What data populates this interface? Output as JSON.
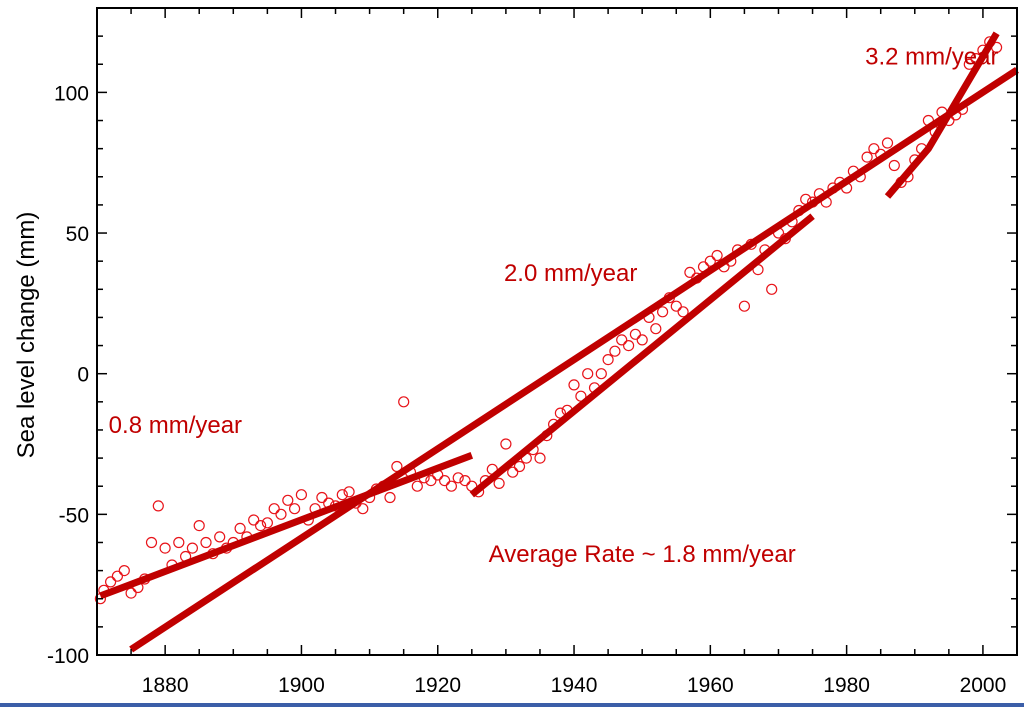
{
  "chart_data": {
    "type": "scatter",
    "title": "",
    "xlabel": "",
    "ylabel": "Sea level change (mm)",
    "xlim": [
      1870,
      2005
    ],
    "ylim": [
      -100,
      130
    ],
    "x_ticks": [
      1880,
      1900,
      1920,
      1940,
      1960,
      1980,
      2000
    ],
    "y_ticks": [
      -100,
      -50,
      0,
      50,
      100
    ],
    "grid": false,
    "colors": {
      "data": "#e8141a",
      "fit": "#c00000",
      "annotation": "#c00000",
      "axis": "#000000"
    },
    "series": [
      {
        "kind": "points",
        "x": [
          1870.5,
          1871,
          1872,
          1873,
          1874,
          1875,
          1876,
          1877,
          1878,
          1879,
          1880,
          1881,
          1882,
          1883,
          1884,
          1885,
          1886,
          1887,
          1888,
          1889,
          1890,
          1891,
          1892,
          1893,
          1894,
          1895,
          1896,
          1897,
          1898,
          1899,
          1900,
          1901,
          1902,
          1903,
          1904,
          1905,
          1906,
          1907,
          1908,
          1909,
          1910,
          1911,
          1912,
          1913,
          1914,
          1915,
          1916,
          1917,
          1918,
          1919,
          1920,
          1921,
          1922,
          1923,
          1924,
          1925,
          1926,
          1927,
          1928,
          1929,
          1930,
          1931,
          1932,
          1933,
          1934,
          1935,
          1936,
          1937,
          1938,
          1939,
          1940,
          1941,
          1942,
          1943,
          1944,
          1945,
          1946,
          1947,
          1948,
          1949,
          1950,
          1951,
          1952,
          1953,
          1954,
          1955,
          1956,
          1957,
          1958,
          1959,
          1960,
          1961,
          1962,
          1963,
          1964,
          1965,
          1966,
          1967,
          1968,
          1969,
          1970,
          1971,
          1972,
          1973,
          1974,
          1975,
          1976,
          1977,
          1978,
          1979,
          1980,
          1981,
          1982,
          1983,
          1984,
          1985,
          1986,
          1987,
          1988,
          1989,
          1990,
          1991,
          1992,
          1993,
          1994,
          1995,
          1996,
          1997,
          1998,
          1999,
          2000,
          2001,
          2002
        ],
        "y": [
          -80,
          -77,
          -74,
          -72,
          -70,
          -78,
          -76,
          -73,
          -60,
          -47,
          -62,
          -68,
          -60,
          -65,
          -62,
          -54,
          -60,
          -64,
          -58,
          -62,
          -60,
          -55,
          -58,
          -52,
          -54,
          -53,
          -48,
          -50,
          -45,
          -48,
          -43,
          -52,
          -48,
          -44,
          -46,
          -47,
          -43,
          -42,
          -46,
          -48,
          -44,
          -41,
          -40,
          -44,
          -33,
          -10,
          -35,
          -40,
          -37,
          -38,
          -36,
          -38,
          -40,
          -37,
          -38,
          -40,
          -42,
          -38,
          -34,
          -39,
          -25,
          -35,
          -33,
          -30,
          -27,
          -30,
          -22,
          -18,
          -14,
          -13,
          -4,
          -8,
          0,
          -5,
          0,
          5,
          8,
          12,
          10,
          14,
          12,
          20,
          16,
          22,
          27,
          24,
          22,
          36,
          34,
          38,
          40,
          42,
          38,
          40,
          44,
          24,
          46,
          37,
          44,
          30,
          50,
          48,
          54,
          58,
          62,
          61,
          64,
          61,
          66,
          68,
          66,
          72,
          70,
          77,
          80,
          78,
          82,
          74,
          68,
          70,
          76,
          80,
          90,
          86,
          93,
          90,
          92,
          94,
          110,
          112,
          115,
          118,
          116
        ]
      },
      {
        "kind": "fit",
        "name": "0.8 mm/year",
        "x": [
          1870.5,
          1925
        ],
        "y": [
          -79,
          -29
        ]
      },
      {
        "kind": "fit",
        "name": "Average Rate ~ 1.8 mm/year",
        "x": [
          1875,
          2005
        ],
        "y": [
          -98,
          108
        ]
      },
      {
        "kind": "fit",
        "name": "2.0 mm/year",
        "x": [
          1925,
          1975
        ],
        "y": [
          -43,
          56
        ]
      },
      {
        "kind": "fit",
        "name": "3.2 mm/year",
        "x": [
          1986,
          1992,
          2002
        ],
        "y": [
          63,
          80,
          121
        ]
      }
    ],
    "annotations": [
      {
        "text": "3.2 mm/year",
        "x": 1992.5,
        "y": 110
      },
      {
        "text": "2.0 mm/year",
        "x": 1939.5,
        "y": 33
      },
      {
        "text": "0.8 mm/year",
        "x": 1881.5,
        "y": -21
      },
      {
        "text": "Average Rate ~ 1.8 mm/year",
        "x": 1950,
        "y": -67
      }
    ]
  }
}
